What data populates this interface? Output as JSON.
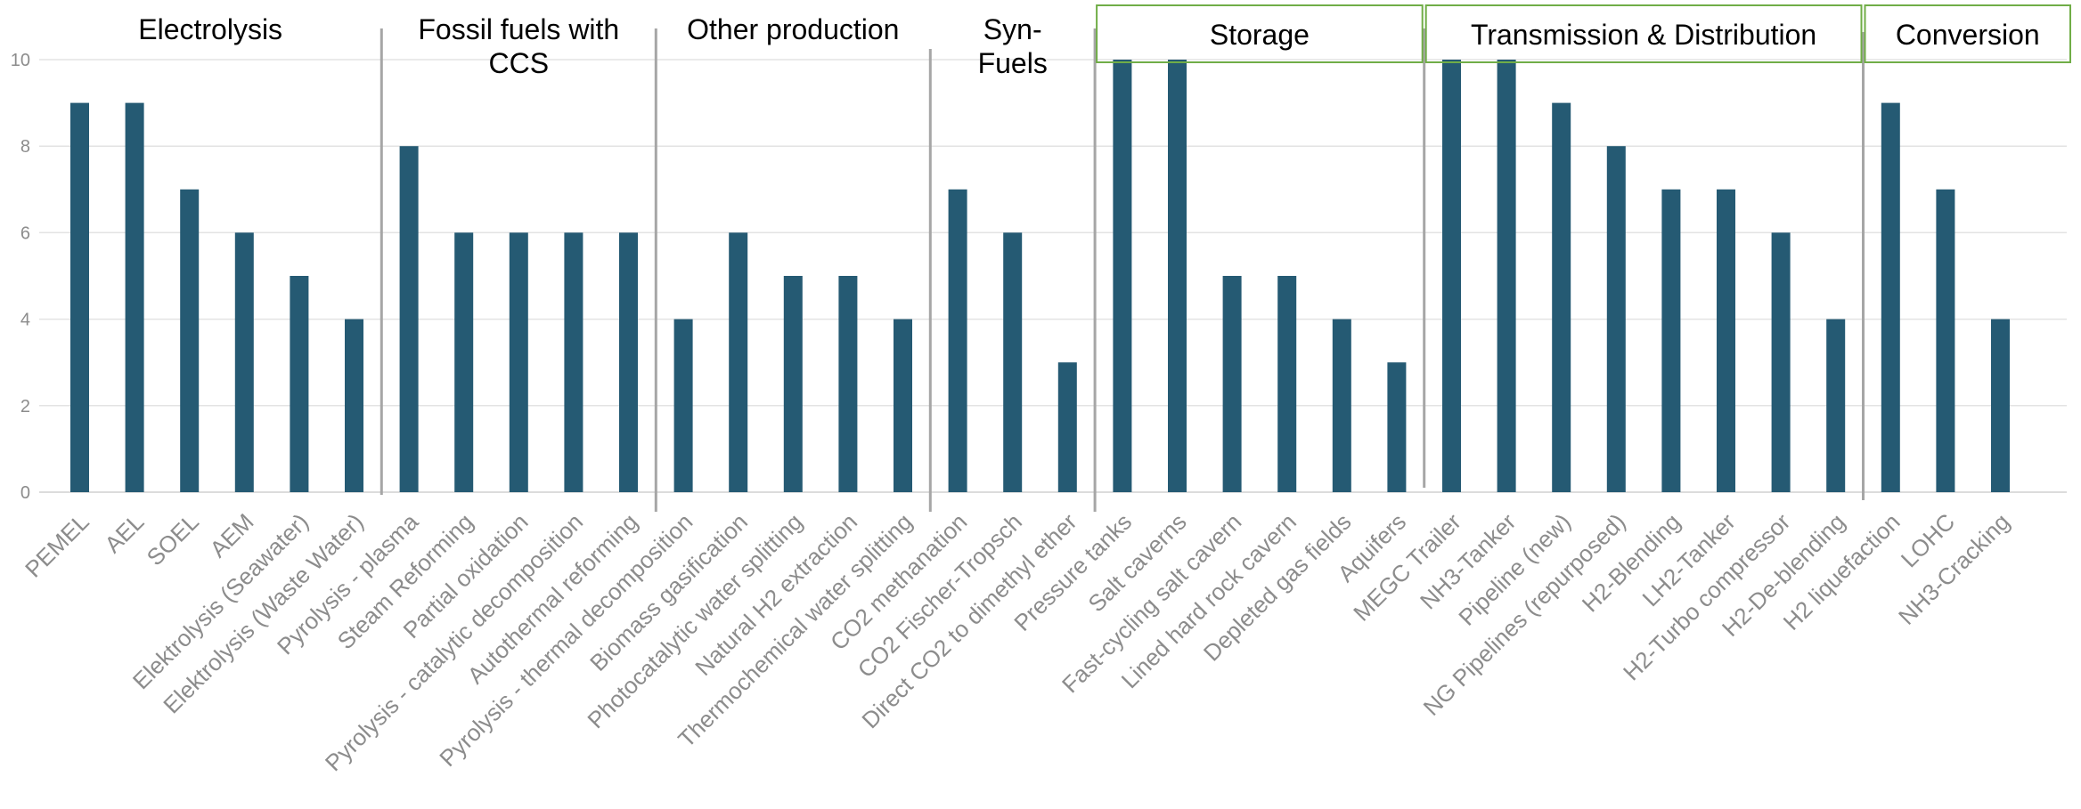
{
  "chart_data": {
    "type": "bar",
    "title": "",
    "xlabel": "",
    "ylabel": "",
    "ylim": [
      0,
      10
    ],
    "yticks": [
      0,
      2,
      4,
      6,
      8,
      10
    ],
    "grid": true,
    "bar_color": "#255a73",
    "categories": [
      "PEMEL",
      "AEL",
      "SOEL",
      "AEM",
      "Elektrolysis (Seawater)",
      "Elektrolysis (Waste Water)",
      "Pyrolysis - plasma",
      "Steam Reforming",
      "Partial oxidation",
      "Pyrolysis - catalytic decomposition",
      "Autothermal reforming",
      "Pyrolysis - thermal decomposition",
      "Biomass gasification",
      "Photocatalytic water splitting",
      "Natural H2 extraction",
      "Thermochemical water splitting",
      "CO2 methanation",
      "CO2 Fischer-Tropsch",
      "Direct CO2 to dimethyl ether",
      "Pressure tanks",
      "Salt caverns",
      "Fast-cycling salt cavern",
      "Lined hard rock cavern",
      "Depleted gas fields",
      "Aquifers",
      "MEGC Trailer",
      "NH3-Tanker",
      "Pipeline (new)",
      "NG Pipelines (repurposed)",
      "H2-Blending",
      "LH2-Tanker",
      "H2-Turbo compressor",
      "H2-De-blending",
      "H2 liquefaction",
      "LOHC",
      "NH3-Cracking"
    ],
    "values": [
      9,
      9,
      7,
      6,
      5,
      4,
      8,
      6,
      6,
      6,
      6,
      4,
      6,
      5,
      5,
      4,
      7,
      6,
      3,
      10,
      10,
      5,
      5,
      4,
      3,
      10,
      10,
      9,
      8,
      7,
      7,
      6,
      4,
      9,
      7,
      4
    ],
    "groups": [
      {
        "label_lines": [
          "Electrolysis"
        ],
        "count": 6,
        "boxed": false
      },
      {
        "label_lines": [
          "Fossil fuels with",
          "CCS"
        ],
        "count": 5,
        "boxed": false
      },
      {
        "label_lines": [
          "Other production"
        ],
        "count": 5,
        "boxed": false
      },
      {
        "label_lines": [
          "Syn-",
          "Fuels"
        ],
        "count": 3,
        "boxed": false
      },
      {
        "label_lines": [
          "Storage"
        ],
        "count": 6,
        "boxed": true
      },
      {
        "label_lines": [
          "Transmission & Distribution"
        ],
        "count": 8,
        "boxed": true
      },
      {
        "label_lines": [
          "Conversion"
        ],
        "count": 3,
        "boxed": true
      }
    ],
    "separator_color": "#a6a6a6",
    "box_color": "#70ad47"
  }
}
